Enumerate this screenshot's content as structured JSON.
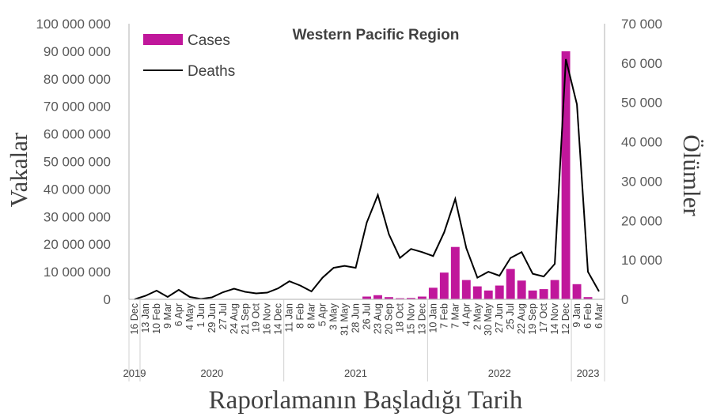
{
  "chart_data": {
    "type": "bar",
    "title": "Western Pacific Region",
    "ylabel": "Vakalar",
    "y2label": "Ölümler",
    "xlabel": "Raporlamanın Başladığı Tarih",
    "ylim": [
      0,
      100000000
    ],
    "y2lim": [
      0,
      70000
    ],
    "yticks": [
      "0",
      "10 000 000",
      "20 000 000",
      "30 000 000",
      "40 000 000",
      "50 000 000",
      "60 000 000",
      "70 000 000",
      "80 000 000",
      "90 000 000",
      "100 000 000"
    ],
    "y2ticks": [
      "0",
      "10 000",
      "20 000",
      "30 000",
      "40 000",
      "50 000",
      "60 000",
      "70 000"
    ],
    "grid": false,
    "legend_position": "top-left",
    "categories": [
      "16 Dec",
      "13 Jan",
      "10 Feb",
      "9 Mar",
      "6 Apr",
      "4 May",
      "1 Jun",
      "29 Jun",
      "27 Jul",
      "24 Aug",
      "21 Sep",
      "19 Oct",
      "16 Nov",
      "14 Dec",
      "11 Jan",
      "8 Feb",
      "8 Mar",
      "5 Apr",
      "3 May",
      "31 May",
      "28 Jun",
      "26 Jul",
      "23 Aug",
      "20 Sep",
      "18 Oct",
      "15 Nov",
      "13 Dec",
      "10 Jan",
      "7 Feb",
      "7 Mar",
      "4 Apr",
      "2 May",
      "30 May",
      "27 Jun",
      "25 Jul",
      "22 Aug",
      "19 Sep",
      "17 Oct",
      "14 Nov",
      "12 Dec",
      "9 Jan",
      "6 Feb",
      "6 Mar"
    ],
    "years": [
      {
        "label": "2019"
      },
      {
        "label": "2020"
      },
      {
        "label": "2021"
      },
      {
        "label": "2022"
      },
      {
        "label": "2023"
      }
    ],
    "series": [
      {
        "name": "Cases",
        "type": "bar",
        "axis": "left",
        "color": "#c0179b",
        "values": [
          0,
          0,
          0,
          0,
          0,
          0,
          0,
          0,
          0,
          0,
          0,
          0,
          0,
          0,
          0,
          0,
          0,
          0,
          0,
          0,
          0,
          1000000,
          1500000,
          800000,
          400000,
          500000,
          1000000,
          4200000,
          9700000,
          19000000,
          7000000,
          4700000,
          3200000,
          5000000,
          11000000,
          6800000,
          3200000,
          3700000,
          7000000,
          90000000,
          5500000,
          800000,
          0
        ]
      },
      {
        "name": "Deaths",
        "type": "line",
        "axis": "right",
        "color": "#000000",
        "values": [
          0,
          900,
          2200,
          600,
          2400,
          600,
          100,
          500,
          1800,
          2700,
          1900,
          1500,
          1700,
          2800,
          4600,
          3500,
          2000,
          5500,
          8000,
          8500,
          8000,
          19500,
          26500,
          16500,
          10500,
          12800,
          12000,
          11000,
          17000,
          25500,
          13000,
          5500,
          7000,
          6000,
          10500,
          12000,
          6500,
          5800,
          9000,
          61000,
          49500,
          7000,
          2000
        ]
      }
    ]
  }
}
